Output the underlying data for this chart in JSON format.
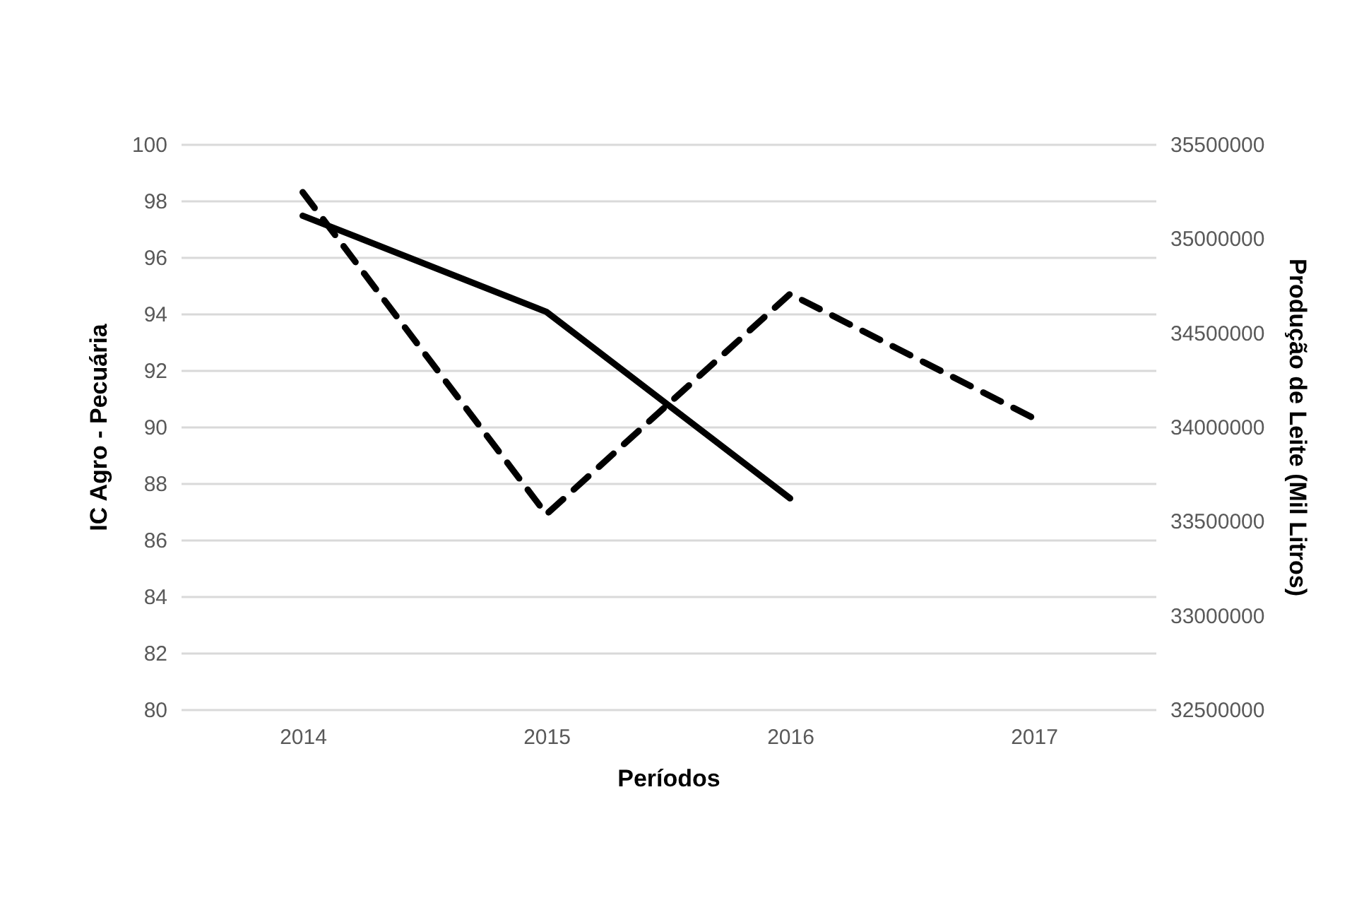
{
  "chart_data": {
    "type": "line",
    "xlabel": "Períodos",
    "ylabel": "IC Agro - Pecuária",
    "y2label": "Produção de Leite (Mil Litros)",
    "categories": [
      "2014",
      "2015",
      "2016",
      "2017"
    ],
    "series": [
      {
        "color": "#000000",
        "line_style": "dashed",
        "values": [
          98.3,
          86.9,
          94.7,
          90.3
        ]
      },
      {
        "color": "#000000",
        "line_style": "solid",
        "axis": "y2",
        "values": [
          35120000,
          34610000,
          33620000,
          null
        ]
      }
    ],
    "ylim": [
      80,
      100
    ],
    "yticks": [
      80,
      82,
      84,
      86,
      88,
      90,
      92,
      94,
      96,
      98,
      100
    ],
    "y2lim": [
      32500000,
      35500000
    ],
    "y2ticks": [
      32500000,
      33000000,
      33500000,
      34000000,
      34500000,
      35000000,
      35500000
    ],
    "grid": "y",
    "marker": "none"
  }
}
